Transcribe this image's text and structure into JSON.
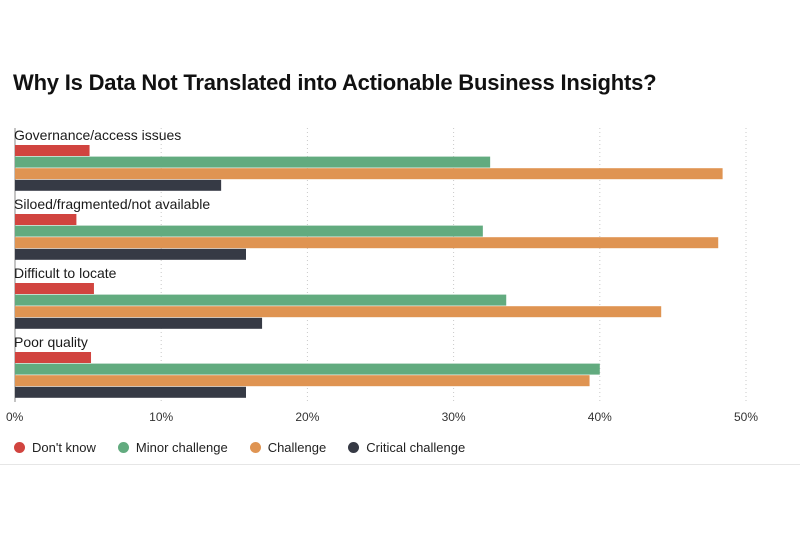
{
  "title": "Why Is Data Not Translated into Actionable Business Insights?",
  "colors": {
    "dont_know": "#d1443f",
    "minor_challenge": "#62ab7f",
    "challenge": "#df9452",
    "critical_challenge": "#363a45",
    "grid": "#c9c9c9",
    "axis": "#8a8a8a"
  },
  "chart_data": {
    "type": "bar",
    "orientation": "horizontal",
    "title": "Why Is Data Not Translated into Actionable Business Insights?",
    "categories": [
      "Governance/access issues",
      "Siloed/fragmented/not available",
      "Difficult to locate",
      "Poor quality"
    ],
    "series": [
      {
        "name": "Don't know",
        "color_key": "dont_know",
        "values": [
          5.1,
          4.2,
          5.4,
          5.2
        ]
      },
      {
        "name": "Minor challenge",
        "color_key": "minor_challenge",
        "values": [
          32.5,
          32.0,
          33.6,
          40.0
        ]
      },
      {
        "name": "Challenge",
        "color_key": "challenge",
        "values": [
          48.4,
          48.1,
          44.2,
          39.3
        ]
      },
      {
        "name": "Critical challenge",
        "color_key": "critical_challenge",
        "values": [
          14.1,
          15.8,
          16.9,
          15.8
        ]
      }
    ],
    "xlim": [
      0,
      50
    ],
    "xticks": [
      0,
      10,
      20,
      30,
      40,
      50
    ],
    "xtick_labels": [
      "0%",
      "10%",
      "20%",
      "30%",
      "40%",
      "50%"
    ],
    "xlabel": "",
    "ylabel": "",
    "grid": "vertical dotted",
    "legend_position": "bottom-left"
  }
}
